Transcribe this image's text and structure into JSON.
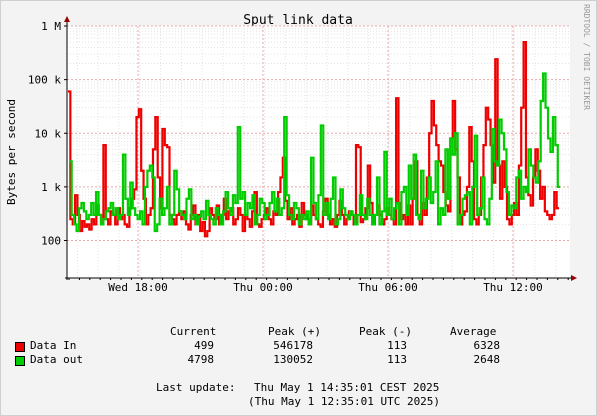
{
  "chart_data": {
    "type": "line",
    "title": "Sput link data",
    "ylabel": "Bytes per second",
    "watermark": "RRDTOOL / TOBI OETIKER",
    "y_scale": "log",
    "ylim": [
      20,
      1000000
    ],
    "y_ticks": [
      {
        "value": 100,
        "label": "100"
      },
      {
        "value": 1000,
        "label": "1 k"
      },
      {
        "value": 10000,
        "label": "10 k"
      },
      {
        "value": 100000,
        "label": "100 k"
      },
      {
        "value": 1000000,
        "label": "1 M"
      }
    ],
    "x_ticks": [
      "Wed 18:00",
      "Thu 00:00",
      "Thu 06:00",
      "Thu 12:00"
    ],
    "series": [
      {
        "name": "Data In",
        "color": "#ee0000",
        "values": [
          60000,
          250,
          200,
          700,
          300,
          150,
          230,
          180,
          200,
          160,
          250,
          200,
          450,
          300,
          200,
          6000,
          250,
          200,
          350,
          300,
          200,
          400,
          250,
          300,
          200,
          180,
          400,
          600,
          900,
          20000,
          28000,
          2000,
          600,
          200,
          300,
          400,
          5000,
          20000,
          1500,
          400,
          12000,
          6000,
          5500,
          300,
          250,
          200,
          300,
          350,
          250,
          350,
          200,
          160,
          300,
          450,
          200,
          300,
          150,
          220,
          120,
          150,
          400,
          300,
          250,
          450,
          200,
          300,
          600,
          250,
          350,
          400,
          200,
          250,
          400,
          300,
          150,
          300,
          250,
          180,
          350,
          800,
          200,
          180,
          250,
          300,
          400,
          250,
          200,
          350,
          300,
          800,
          1500,
          3500,
          550,
          250,
          400,
          200,
          250,
          300,
          180,
          500,
          300,
          250,
          200,
          450,
          300,
          250,
          200,
          180,
          350,
          600,
          300,
          200,
          250,
          180,
          300,
          550,
          300,
          200,
          250,
          350,
          300,
          200,
          6000,
          5500,
          220,
          250,
          400,
          2500,
          500,
          200,
          300,
          450,
          300,
          200,
          250,
          400,
          300,
          250,
          200,
          45000,
          500,
          250,
          300,
          200,
          450,
          200,
          600,
          3000,
          300,
          200,
          500,
          300,
          1500,
          10000,
          40000,
          14000,
          6000,
          3000,
          2500,
          800,
          450,
          350,
          8000,
          40000,
          5000,
          1500,
          200,
          300,
          350,
          1000,
          13000,
          3000,
          250,
          200,
          300,
          1500,
          6000,
          30000,
          18000,
          6000,
          1200,
          240000,
          2500,
          600,
          3000,
          1000,
          250,
          200,
          300,
          500,
          300,
          2500,
          30000,
          500000,
          1500,
          700,
          450,
          1500,
          5000,
          2000,
          600,
          1000,
          350,
          300,
          250,
          300,
          800,
          400
        ],
        "x0": 0.06,
        "x1": 1.45
      },
      {
        "name": "Data out",
        "color": "#00cc00",
        "values": [
          3000,
          300,
          200,
          150,
          400,
          500,
          350,
          250,
          300,
          500,
          300,
          800,
          300,
          200,
          250,
          350,
          400,
          500,
          300,
          400,
          250,
          300,
          4000,
          600,
          300,
          1200,
          400,
          300,
          250,
          350,
          200,
          1000,
          2000,
          2500,
          1500,
          150,
          200,
          600,
          300,
          400,
          1000,
          200,
          300,
          2000,
          900,
          350,
          300,
          250,
          600,
          900,
          250,
          300,
          200,
          280,
          350,
          250,
          550,
          300,
          250,
          200,
          400,
          300,
          200,
          350,
          800,
          400,
          300,
          700,
          500,
          13000,
          600,
          800,
          300,
          500,
          400,
          700,
          200,
          300,
          600,
          500,
          250,
          300,
          500,
          800,
          350,
          600,
          300,
          400,
          20000,
          700,
          300,
          250,
          500,
          400,
          200,
          300,
          250,
          350,
          200,
          3500,
          500,
          250,
          700,
          14000,
          300,
          500,
          250,
          600,
          1500,
          200,
          250,
          900,
          400,
          300,
          250,
          350,
          300,
          200,
          300,
          700,
          300,
          250,
          600,
          300,
          200,
          300,
          1500,
          200,
          350,
          4500,
          300,
          600,
          250,
          400,
          500,
          200,
          800,
          1000,
          300,
          2500,
          600,
          4000,
          300,
          250,
          2000,
          400,
          600,
          1500,
          500,
          800,
          3000,
          200,
          400,
          300,
          5000,
          600,
          8000,
          4000,
          10000,
          200,
          300,
          600,
          700,
          800,
          200,
          1000,
          9000,
          300,
          400,
          1500,
          250,
          200,
          600,
          12000,
          3000,
          2500,
          18000,
          10000,
          5000,
          800,
          300,
          450,
          400,
          1500,
          2000,
          600,
          1000,
          800,
          5000,
          2500,
          1500,
          1200,
          3000,
          40000,
          130000,
          30000,
          8000,
          4500,
          20000,
          6000,
          1000
        ],
        "x0": 0.02,
        "x1": 1.0
      }
    ],
    "legend": {
      "columns": [
        "Current",
        "Peak (+)",
        "Peak (-)",
        "Average"
      ],
      "rows": [
        {
          "name": "Data In",
          "color": "#ee0000",
          "current": "499",
          "peak_plus": "546178",
          "peak_minus": "113",
          "average": "6328"
        },
        {
          "name": "Data out",
          "color": "#00cc00",
          "current": "4798",
          "peak_plus": "130052",
          "peak_minus": "113",
          "average": "2648"
        }
      ]
    },
    "last_update_label": "Last update:",
    "last_update_local": "Thu May 1 14:35:01 CEST 2025",
    "last_update_utc": "(Thu May 1 12:35:01 UTC 2025)"
  }
}
